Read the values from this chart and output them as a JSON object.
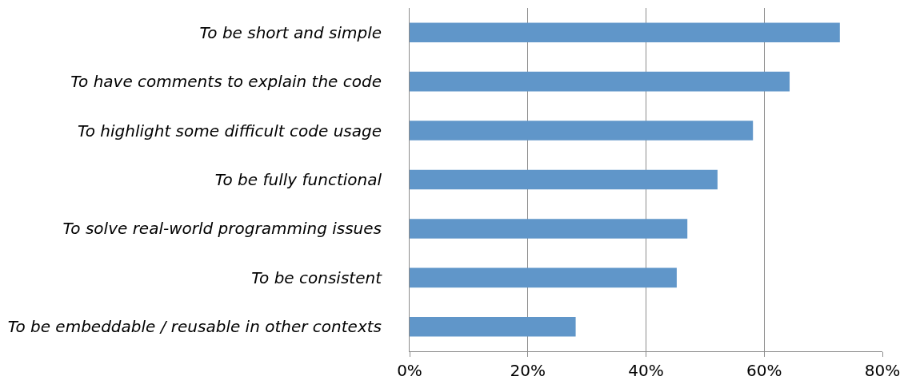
{
  "chart_data": {
    "type": "bar",
    "orientation": "horizontal",
    "categories": [
      "To be short and simple",
      "To have comments to explain the code",
      "To highlight some difficult code usage",
      "To be fully functional",
      "To solve real-world programming issues",
      "To be consistent",
      "To be embeddable / reusable in other contexts"
    ],
    "values": [
      72.8,
      64.3,
      58.1,
      52.1,
      47.0,
      45.2,
      28.1
    ],
    "color": "#6096c9",
    "xlim": [
      0,
      80
    ],
    "xticks": [
      {
        "value": 0,
        "label": "0%"
      },
      {
        "value": 20,
        "label": "20%"
      },
      {
        "value": 40,
        "label": "40%"
      },
      {
        "value": 60,
        "label": "60%"
      },
      {
        "value": 80,
        "label": "80%"
      }
    ],
    "grid": "x"
  }
}
